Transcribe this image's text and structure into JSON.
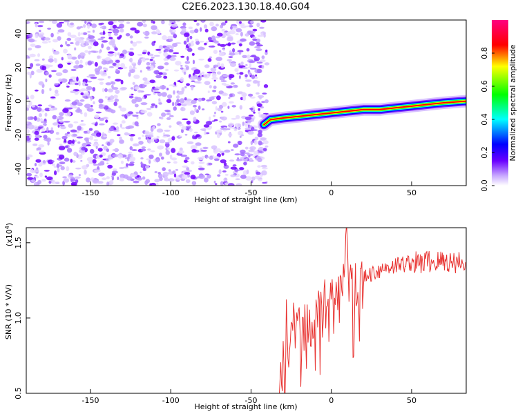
{
  "title": "C2E6.2023.130.18.40.G04",
  "chart_data": [
    {
      "type": "heatmap",
      "xlabel": "Height of straight line (km)",
      "ylabel": "Frequency (Hz)",
      "xlim": [
        -190,
        84
      ],
      "ylim": [
        -50,
        48
      ],
      "xticks": [
        -150,
        -100,
        -50,
        0,
        50
      ],
      "yticks": [
        -40,
        -20,
        0,
        20,
        40
      ],
      "noise_region_x": [
        -190,
        -40
      ],
      "signal_track": {
        "x": [
          -42,
          -38,
          -30,
          -20,
          -10,
          0,
          10,
          20,
          30,
          40,
          50,
          60,
          70,
          84
        ],
        "y": [
          -14,
          -11,
          -10,
          -9,
          -8,
          -7,
          -6,
          -5,
          -5,
          -4,
          -3,
          -2,
          -1,
          0
        ]
      },
      "colorbar": {
        "label": "Normalized spectral amplitude",
        "ticks": [
          "0.0",
          "0.2",
          "0.4",
          "0.6",
          "0.8"
        ],
        "range": [
          0,
          1
        ],
        "colors": [
          "#ffffff",
          "#6a00ff",
          "#0000ff",
          "#00ffff",
          "#00ff00",
          "#ffff00",
          "#ff0000",
          "#ff0080"
        ]
      }
    },
    {
      "type": "line",
      "xlabel": "Height of straight line (km)",
      "ylabel": "SNR (10 * V/V)",
      "multiplier_label": "(x10",
      "multiplier_exp": "4",
      "multiplier_close": ")",
      "xlim": [
        -190,
        84
      ],
      "ylim": [
        0.5,
        1.6
      ],
      "xticks": [
        -150,
        -100,
        -50,
        0,
        50
      ],
      "yticks": [
        0.5,
        1.0,
        1.5
      ],
      "ytick_labels": [
        "0.5",
        "1.0",
        "1.5"
      ],
      "color": "#e8312f",
      "series": [
        {
          "x": [
            -190,
            -150,
            -100,
            -50,
            -32,
            -30,
            -28,
            -26,
            -24,
            -22,
            -20,
            -18,
            -16,
            -14,
            -12,
            -10,
            -8,
            -6,
            -4,
            -2,
            0,
            2,
            4,
            6,
            8,
            10,
            12,
            14,
            16,
            18,
            20,
            25,
            30,
            35,
            40,
            45,
            50,
            55,
            60,
            65,
            70,
            75,
            80,
            84
          ],
          "y": [
            0.47,
            0.47,
            0.47,
            0.47,
            0.49,
            0.7,
            0.95,
            0.75,
            1.0,
            0.85,
            0.9,
            0.83,
            0.98,
            0.9,
            1.02,
            0.95,
            1.05,
            1.0,
            1.08,
            1.0,
            1.12,
            1.05,
            1.15,
            1.1,
            1.3,
            1.58,
            1.2,
            1.15,
            1.22,
            1.2,
            1.25,
            1.3,
            1.32,
            1.34,
            1.35,
            1.36,
            1.37,
            1.36,
            1.38,
            1.37,
            1.38,
            1.37,
            1.38,
            1.37
          ]
        }
      ]
    }
  ]
}
